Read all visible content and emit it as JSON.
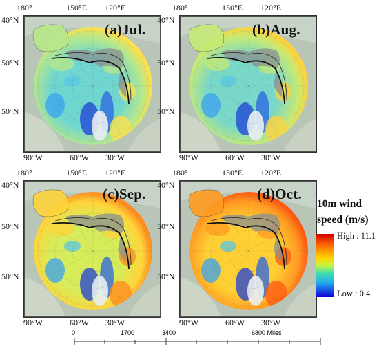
{
  "panels": [
    {
      "title": "(a)Jul.",
      "theme": "jul"
    },
    {
      "title": "(b)Aug.",
      "theme": "aug"
    },
    {
      "title": "(c)Sep.",
      "theme": "sep"
    },
    {
      "title": "(d)Oct.",
      "theme": "oct"
    }
  ],
  "axis_labels": {
    "top_left": "180°",
    "top_mid": "150°E",
    "top_right": "120°E",
    "left_top": "40°N",
    "left_mid": "50°N",
    "left_bot": "50°N",
    "bottom_left": "90°W",
    "bottom_mid": "60°W",
    "bottom_right": "30°W"
  },
  "legend": {
    "title_line1": "10m wind",
    "title_line2": "speed (m/s)",
    "high_label": "High : 11.1",
    "low_label": "Low : 0.4",
    "high_value": 11.1,
    "low_value": 0.4,
    "colors": [
      "#d00000",
      "#ff6a00",
      "#ffd400",
      "#c8f542",
      "#3fe0b0",
      "#22a8f0",
      "#1000d8"
    ]
  },
  "scalebar": {
    "ticks": [
      "0",
      "1700",
      "3400",
      "6800 Miles"
    ]
  },
  "panel_colors": {
    "jul": {
      "base": "#6fd6d0",
      "warm": "#b8e88a",
      "hot": "#ffe04a"
    },
    "aug": {
      "base": "#7ad8c8",
      "warm": "#c6ea74",
      "hot": "#ffd23c"
    },
    "sep": {
      "base": "#d6ec5a",
      "warm": "#ffd43a",
      "hot": "#ff8a1e"
    },
    "oct": {
      "base": "#ffd033",
      "warm": "#ff9b22",
      "hot": "#ff5a12"
    }
  }
}
